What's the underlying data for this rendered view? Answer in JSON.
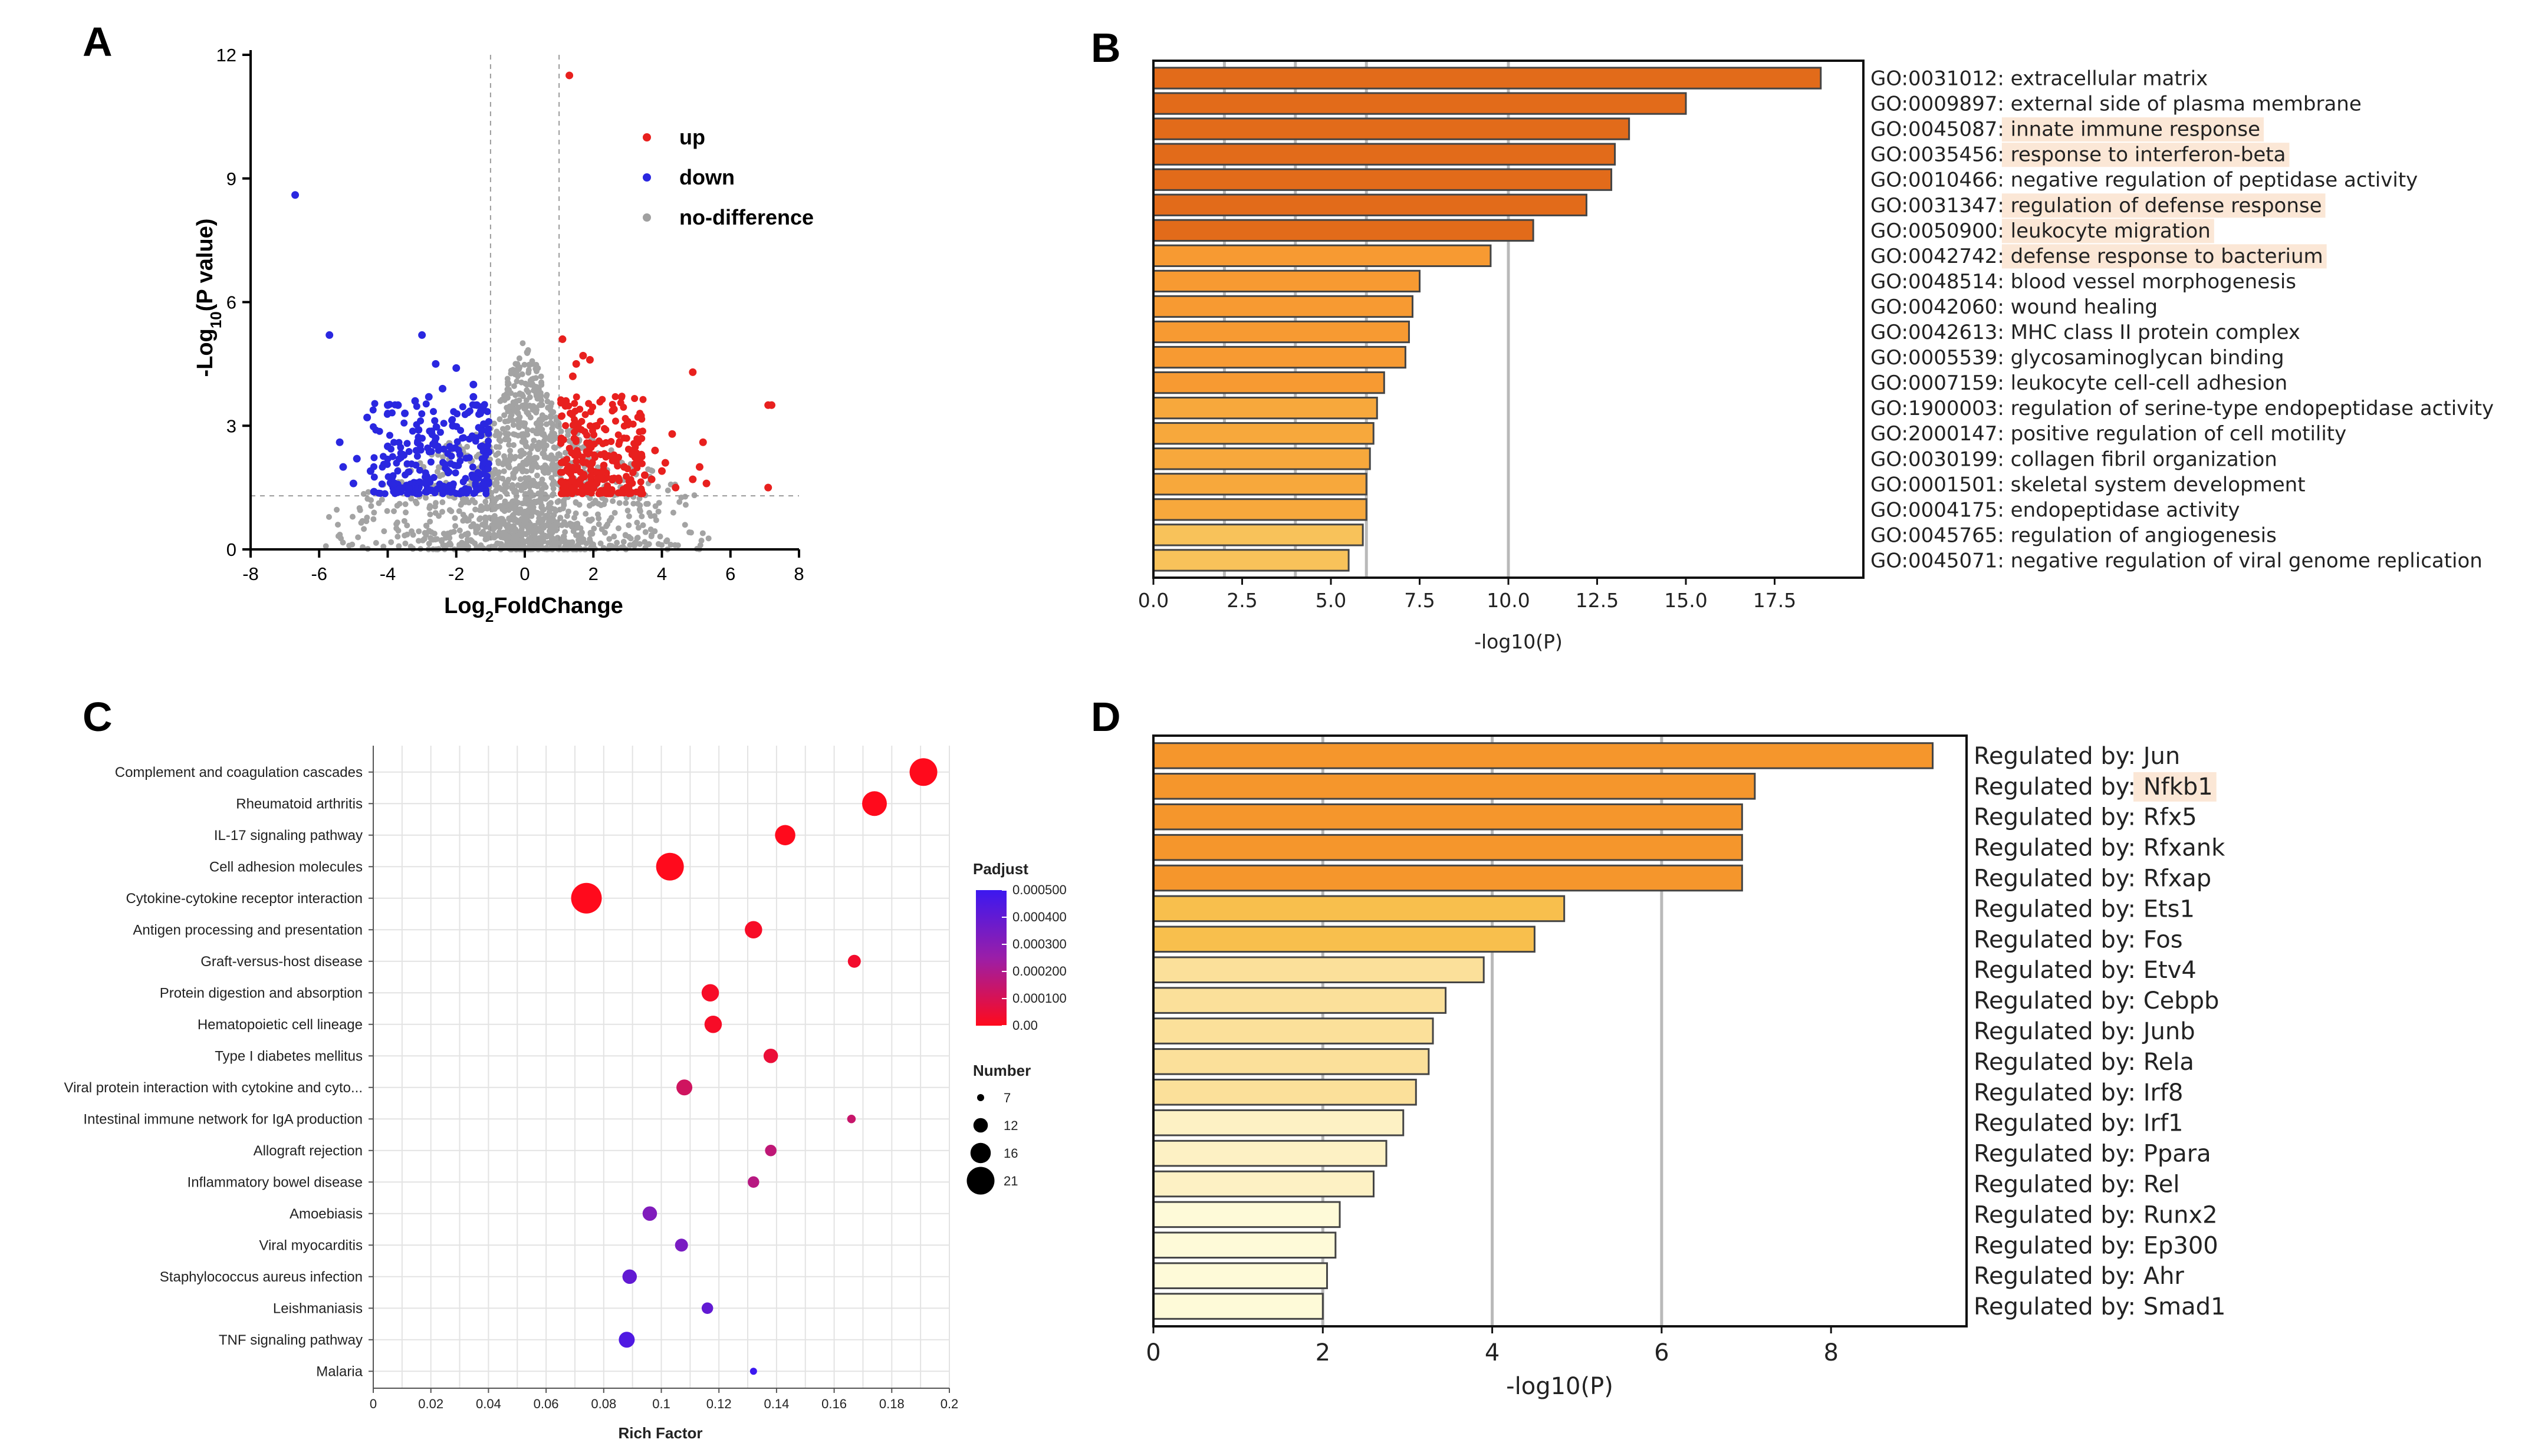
{
  "figure": {
    "panel_letters": [
      "A",
      "B",
      "C",
      "D"
    ]
  },
  "chart_data": [
    {
      "id": "A",
      "type": "scatter",
      "title": "",
      "xlabel": "Log2FoldChange",
      "ylabel": "-Log10(P value)",
      "xlim": [
        -8,
        8
      ],
      "ylim": [
        0,
        12
      ],
      "xticks": [
        "-8",
        "-6",
        "-4",
        "-2",
        "0",
        "2",
        "4",
        "6",
        "8"
      ],
      "yticks": [
        "0",
        "3",
        "6",
        "9",
        "12"
      ],
      "thresholds": {
        "fold_change": [
          -1,
          1
        ],
        "neg_log10_p": 1.3
      },
      "legend": [
        {
          "label": "up",
          "color": "#e8201e"
        },
        {
          "label": "down",
          "color": "#2a27e0"
        },
        {
          "label": "no-difference",
          "color": "#a0a0a0"
        }
      ],
      "series": [
        {
          "name": "up",
          "color": "#e8201e",
          "points": [
            [
              1.3,
              11.5
            ],
            [
              1.1,
              5.1
            ],
            [
              7.1,
              3.5
            ],
            [
              7.2,
              3.5
            ],
            [
              4.9,
              4.3
            ],
            [
              7.1,
              1.5
            ],
            [
              1.5,
              4.5
            ],
            [
              1.7,
              4.7
            ],
            [
              1.9,
              4.6
            ],
            [
              1.4,
              4.2
            ],
            [
              1.2,
              3.6
            ],
            [
              2.1,
              3.0
            ],
            [
              2.6,
              3.4
            ],
            [
              3.0,
              3.1
            ],
            [
              3.3,
              2.6
            ],
            [
              3.8,
              2.4
            ],
            [
              4.3,
              2.8
            ],
            [
              5.2,
              2.6
            ],
            [
              5.1,
              2.0
            ],
            [
              4.9,
              1.7
            ],
            [
              4.4,
              1.5
            ],
            [
              5.3,
              1.6
            ],
            [
              4.0,
              1.9
            ],
            [
              3.5,
              1.8
            ],
            [
              2.9,
              2.0
            ],
            [
              3.7,
              1.7
            ],
            [
              4.1,
              2.1
            ],
            [
              3.4,
              2.3
            ]
          ]
        },
        {
          "name": "down",
          "color": "#2a27e0",
          "points": [
            [
              -6.7,
              8.6
            ],
            [
              -5.7,
              5.2
            ],
            [
              -3.0,
              5.2
            ],
            [
              -2.6,
              4.5
            ],
            [
              -2.0,
              4.4
            ],
            [
              -1.5,
              4.0
            ],
            [
              -1.5,
              3.7
            ],
            [
              -1.4,
              3.5
            ],
            [
              -1.3,
              3.3
            ],
            [
              -2.4,
              3.9
            ],
            [
              -2.8,
              3.7
            ],
            [
              -3.2,
              3.6
            ],
            [
              -3.7,
              3.5
            ],
            [
              -4.0,
              3.5
            ],
            [
              -3.5,
              3.3
            ],
            [
              -4.6,
              3.2
            ],
            [
              -5.4,
              2.6
            ],
            [
              -5.3,
              2.0
            ],
            [
              -4.9,
              2.2
            ],
            [
              -4.5,
              1.9
            ],
            [
              -4.0,
              2.5
            ],
            [
              -3.1,
              2.9
            ],
            [
              -2.6,
              2.7
            ],
            [
              -2.1,
              3.0
            ],
            [
              -5.0,
              1.6
            ],
            [
              -4.4,
              1.4
            ],
            [
              -3.8,
              1.6
            ]
          ]
        }
      ]
    },
    {
      "id": "B",
      "type": "bar",
      "orientation": "horizontal",
      "xlabel": "-log10(P)",
      "xlim": [
        0,
        20
      ],
      "xticks": [
        0.0,
        2.5,
        5.0,
        7.5,
        10.0,
        12.5,
        15.0,
        17.5
      ],
      "xtick_labels": [
        "0.0",
        "2.5",
        "5.0",
        "7.5",
        "10.0",
        "12.5",
        "15.0",
        "17.5"
      ],
      "gridlines_at": [
        2,
        4,
        6,
        10
      ],
      "categories": [
        "GO:0031012: extracellular matrix",
        "GO:0009897: external side of plasma membrane",
        "GO:0045087: innate immune response",
        "GO:0035456: response to interferon-beta",
        "GO:0010466: negative regulation of peptidase activity",
        "GO:0031347: regulation of defense response",
        "GO:0050900: leukocyte migration",
        "GO:0042742: defense response to bacterium",
        "GO:0048514: blood vessel morphogenesis",
        "GO:0042060: wound healing",
        "GO:0042613: MHC class II protein complex",
        "GO:0005539: glycosaminoglycan binding",
        "GO:0007159: leukocyte cell-cell adhesion",
        "GO:1900003: regulation of serine-type endopeptidase activity",
        "GO:2000147: positive regulation of cell motility",
        "GO:0030199: collagen fibril organization",
        "GO:0001501: skeletal system development",
        "GO:0004175: endopeptidase activity",
        "GO:0045765: regulation of angiogenesis",
        "GO:0045071: negative regulation of viral genome replication"
      ],
      "values": [
        18.8,
        15.0,
        13.4,
        13.0,
        12.9,
        12.2,
        10.7,
        9.5,
        7.5,
        7.3,
        7.2,
        7.1,
        6.5,
        6.3,
        6.2,
        6.1,
        6.0,
        6.0,
        5.9,
        5.5
      ],
      "highlighted": [
        2,
        3,
        5,
        6,
        7
      ],
      "highlight_color": "#fbe7d6"
    },
    {
      "id": "C",
      "type": "scatter",
      "subtype": "bubble",
      "xlabel": "Rich Factor",
      "xlim": [
        0,
        0.2
      ],
      "xticks": [
        "0",
        "0.02",
        "0.04",
        "0.06",
        "0.08",
        "0.1",
        "0.12",
        "0.14",
        "0.16",
        "0.18",
        "0.2"
      ],
      "colorbar": {
        "title": "Padjust",
        "ticks": [
          "0.000500",
          "0.000400",
          "0.000300",
          "0.000200",
          "0.000100",
          "0.00"
        ],
        "low_color": "#ff0a1c",
        "high_color": "#3c18f0",
        "min": 0,
        "max": 0.0005
      },
      "size_legend": {
        "title": "Number",
        "values": [
          7,
          12,
          16,
          21
        ]
      },
      "categories": [
        "Complement and coagulation cascades",
        "Rheumatoid arthritis",
        "IL-17 signaling pathway",
        "Cell adhesion molecules",
        "Cytokine-cytokine receptor interaction",
        "Antigen processing and presentation",
        "Graft-versus-host disease",
        "Protein digestion and absorption",
        "Hematopoietic cell lineage",
        "Type I diabetes mellitus",
        "Viral protein interaction with cytokine and cyto...",
        "Intestinal immune network for IgA production",
        "Allograft rejection",
        "Inflammatory bowel disease",
        "Amoebiasis",
        "Viral myocarditis",
        "Staphylococcus aureus infection",
        "Leishmaniasis",
        "TNF signaling pathway",
        "Malaria"
      ],
      "rich_factor": [
        0.191,
        0.174,
        0.143,
        0.103,
        0.074,
        0.132,
        0.167,
        0.117,
        0.118,
        0.138,
        0.108,
        0.166,
        0.138,
        0.132,
        0.096,
        0.107,
        0.089,
        0.116,
        0.088,
        0.132
      ],
      "number": [
        21,
        19,
        16,
        21,
        23,
        14,
        11,
        14,
        14,
        12,
        13,
        8,
        10,
        10,
        12,
        11,
        12,
        10,
        13,
        7
      ],
      "padjust": [
        0.0,
        0.0,
        0.0,
        0.0,
        0.0,
        2e-05,
        3e-05,
        2e-05,
        2e-05,
        5e-05,
        0.00012,
        0.00014,
        0.00016,
        0.00018,
        0.00032,
        0.00034,
        0.0004,
        0.0004,
        0.00045,
        0.0005
      ]
    },
    {
      "id": "D",
      "type": "bar",
      "orientation": "horizontal",
      "xlabel": "-log10(P)",
      "xlim": [
        0,
        9.6
      ],
      "xticks": [
        0,
        2,
        4,
        6,
        8
      ],
      "xtick_labels": [
        "0",
        "2",
        "4",
        "6",
        "8"
      ],
      "gridlines_at": [
        2,
        4,
        6
      ],
      "categories": [
        "Regulated by: Jun",
        "Regulated by: Nfkb1",
        "Regulated by: Rfx5",
        "Regulated by: Rfxank",
        "Regulated by: Rfxap",
        "Regulated by: Ets1",
        "Regulated by: Fos",
        "Regulated by: Etv4",
        "Regulated by: Cebpb",
        "Regulated by: Junb",
        "Regulated by: Rela",
        "Regulated by: Irf8",
        "Regulated by: Irf1",
        "Regulated by: Ppara",
        "Regulated by: Rel",
        "Regulated by: Runx2",
        "Regulated by: Ep300",
        "Regulated by: Ahr",
        "Regulated by: Smad1"
      ],
      "values": [
        9.2,
        7.1,
        6.95,
        6.95,
        6.95,
        4.85,
        4.5,
        3.9,
        3.45,
        3.3,
        3.25,
        3.1,
        2.95,
        2.75,
        2.6,
        2.2,
        2.15,
        2.05,
        2.0
      ],
      "highlighted": [
        1
      ],
      "highlight_color": "#fbe7d6",
      "highlight_text": "Nfkb1"
    }
  ]
}
